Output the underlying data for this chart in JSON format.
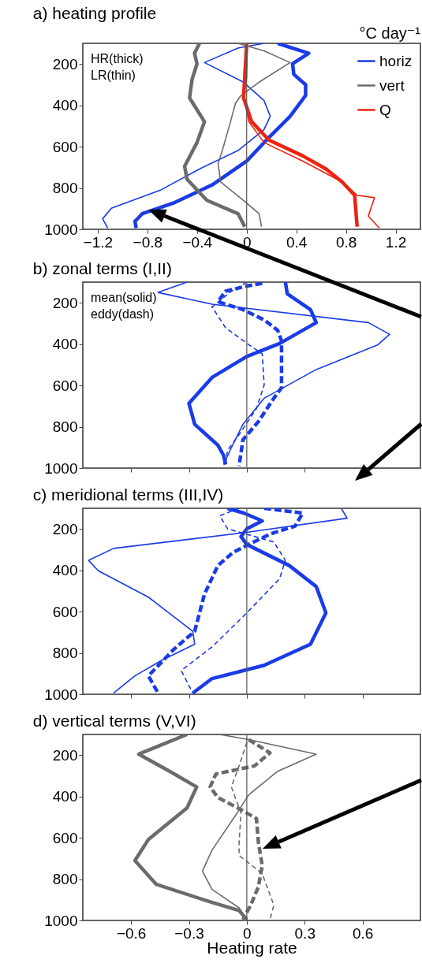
{
  "chart_data": [
    {
      "type": "line",
      "title": "a) heating profile",
      "subtitle": "°C day⁻¹",
      "annotations": [
        "HR(thick)",
        "LR(thin)"
      ],
      "xlim": [
        -1.32,
        1.4
      ],
      "xticks": [
        -1.2,
        -0.8,
        -0.4,
        0,
        0.4,
        0.8,
        1.2
      ],
      "ylim": [
        1000,
        100
      ],
      "yticks": [
        200,
        400,
        600,
        800,
        1000
      ],
      "legend": "top right",
      "ref_lines": [
        {
          "axis": "x",
          "value": 0,
          "color": "#555555"
        }
      ],
      "series": [
        {
          "name": "horiz",
          "color": "#1a3be8",
          "x": [
            0.25,
            0.5,
            0.37,
            0.38,
            0.475,
            0.475,
            0.35,
            0.18,
            0.0,
            -0.275,
            -0.59,
            -0.84,
            -0.9,
            -0.89
          ],
          "values": [
            100,
            148,
            199,
            250,
            300,
            352,
            453,
            555,
            670,
            784,
            873,
            924,
            962,
            994
          ]
        },
        {
          "color": "#1a3be8",
          "x": [
            0.14,
            -0.07,
            -0.34,
            -0.025,
            0.14,
            0.19,
            0.14,
            -0.07,
            -0.38,
            -0.69,
            -1.09,
            -1.16,
            -1.12
          ],
          "values": [
            100,
            123,
            193,
            288,
            377,
            453,
            517,
            619,
            708,
            809,
            898,
            949,
            994
          ]
        },
        {
          "name": "vert",
          "color": "#6b6b6b",
          "x": [
            -0.38,
            -0.42,
            -0.4,
            -0.44,
            -0.46,
            -0.34,
            -0.4,
            -0.5,
            -0.48,
            -0.32,
            -0.07,
            -0.015
          ],
          "values": [
            100,
            148,
            199,
            275,
            364,
            479,
            580,
            695,
            758,
            860,
            924,
            987
          ]
        },
        {
          "color": "#6b6b6b",
          "x": [
            -0.07,
            0.14,
            0.35,
            0.1,
            -0.045,
            -0.09,
            -0.13,
            -0.19,
            -0.23,
            -0.21,
            -0.025,
            0.1,
            0.12
          ],
          "values": [
            100,
            136,
            193,
            288,
            352,
            390,
            479,
            606,
            682,
            771,
            860,
            924,
            987
          ]
        },
        {
          "name": "Q",
          "color": "#ee2211",
          "x": [
            0,
            -0.015,
            -0.025,
            0.04,
            0.18,
            0.45,
            0.64,
            0.77,
            0.87,
            0.88,
            0.89
          ],
          "values": [
            100,
            263,
            364,
            479,
            568,
            644,
            708,
            771,
            835,
            911,
            987
          ]
        },
        {
          "color": "#ee2211",
          "x": [
            0.006,
            0,
            -0.025,
            0.017,
            0.14,
            0.45,
            0.77,
            0.89,
            1.03,
            0.98,
            1.07
          ],
          "values": [
            100,
            263,
            339,
            479,
            580,
            669,
            771,
            835,
            847,
            936,
            994
          ]
        }
      ]
    },
    {
      "type": "line",
      "title": "b) zonal terms (I,II)",
      "annotations": [
        "mean(solid)",
        "eddy(dash)"
      ],
      "xlim": [
        -0.85,
        0.9
      ],
      "xticks": [
        -0.6,
        -0.3,
        0,
        0.3,
        0.6
      ],
      "ylim": [
        1000,
        100
      ],
      "yticks": [
        200,
        400,
        600,
        800,
        1000
      ],
      "tick_labels": "y",
      "ref_lines": [
        {
          "axis": "x",
          "value": 0,
          "color": "#555555"
        }
      ],
      "series": [
        {
          "color": "#1a3be8",
          "line_style": "solid",
          "x": [
            0.2,
            0.21,
            0.33,
            0.36,
            0.17,
            0,
            -0.18,
            -0.3,
            -0.27,
            -0.15,
            -0.12,
            -0.11
          ],
          "values": [
            100,
            157,
            233,
            296,
            397,
            460,
            561,
            687,
            788,
            889,
            939,
            983
          ]
        },
        {
          "color": "#1a3be8",
          "line_style": "solid",
          "x": [
            -0.31,
            -0.46,
            -0.18,
            0.63,
            0.74,
            0.68,
            0.36,
            0.09,
            -0.02,
            -0.08,
            -0.12
          ],
          "values": [
            100,
            150,
            207,
            296,
            352,
            403,
            523,
            662,
            788,
            901,
            983
          ]
        },
        {
          "color": "#1a3be8",
          "line_style": "dashed",
          "x": [
            0.08,
            0,
            -0.11,
            -0.15,
            -0.02,
            0.09,
            0.16,
            0.18,
            0.18,
            0.14,
            0.06,
            -0.02,
            -0.04
          ],
          "values": [
            106,
            119,
            144,
            195,
            233,
            283,
            333,
            384,
            611,
            662,
            775,
            863,
            990
          ]
        },
        {
          "color": "#1a3be8",
          "line_style": "dashed",
          "x": [
            0,
            -0.08,
            -0.18,
            -0.11,
            0.02,
            0.08,
            0.09,
            0.05,
            -0.04,
            -0.1,
            -0.11
          ],
          "values": [
            100,
            144,
            220,
            321,
            409,
            447,
            598,
            712,
            838,
            914,
            983
          ]
        }
      ]
    },
    {
      "type": "line",
      "title": "c) meridional terms (III,IV)",
      "xlim": [
        -0.85,
        0.9
      ],
      "xticks": [
        -0.6,
        -0.3,
        0,
        0.3,
        0.6
      ],
      "ylim": [
        1000,
        100
      ],
      "yticks": [
        200,
        400,
        600,
        800,
        1000
      ],
      "tick_labels": "y",
      "ref_lines": [
        {
          "axis": "x",
          "value": 0,
          "color": "#555555"
        }
      ],
      "series": [
        {
          "color": "#1a3be8",
          "line_style": "solid",
          "x": [
            -0.1,
            -0.016,
            0.08,
            0,
            -0.03,
            0,
            0.22,
            0.36,
            0.41,
            0.33,
            0.09,
            -0.18,
            -0.28
          ],
          "values": [
            100,
            123,
            161,
            199,
            237,
            275,
            377,
            479,
            606,
            758,
            860,
            924,
            994
          ]
        },
        {
          "color": "#1a3be8",
          "line_style": "solid",
          "x": [
            0.49,
            0.52,
            -0.016,
            -0.69,
            -0.82,
            -0.77,
            -0.51,
            -0.28,
            -0.27,
            -0.44,
            -0.58,
            -0.69
          ],
          "values": [
            100,
            148,
            218,
            294,
            352,
            402,
            530,
            695,
            758,
            835,
            911,
            994
          ]
        },
        {
          "color": "#1a3be8",
          "line_style": "dashed",
          "x": [
            0.09,
            0.29,
            0.25,
            0.12,
            0.01,
            -0.07,
            -0.15,
            -0.22,
            -0.27,
            -0.38,
            -0.51,
            -0.46
          ],
          "values": [
            100,
            123,
            186,
            225,
            275,
            313,
            377,
            517,
            695,
            784,
            911,
            994
          ]
        },
        {
          "color": "#1a3be8",
          "line_style": "dashed",
          "x": [
            -0.04,
            -0.14,
            -0.1,
            0.14,
            0.2,
            0.17,
            0,
            -0.18,
            -0.34,
            -0.28
          ],
          "values": [
            100,
            136,
            199,
            263,
            352,
            441,
            606,
            771,
            885,
            994
          ]
        }
      ]
    },
    {
      "type": "line",
      "title": "d) vertical terms (V,VI)",
      "xlabel": "Heating rate",
      "xlim": [
        -0.85,
        0.9
      ],
      "xticks": [
        -0.6,
        -0.3,
        0,
        0.3,
        0.6
      ],
      "ylim": [
        1000,
        100
      ],
      "yticks": [
        200,
        400,
        600,
        800,
        1000
      ],
      "ref_lines": [
        {
          "axis": "x",
          "value": 0,
          "color": "#555555"
        }
      ],
      "series": [
        {
          "color": "#6b6b6b",
          "line_style": "solid",
          "x": [
            -0.31,
            -0.56,
            -0.4,
            -0.26,
            -0.31,
            -0.51,
            -0.58,
            -0.47,
            -0.18,
            -0.04,
            0
          ],
          "values": [
            100,
            195,
            278,
            354,
            456,
            608,
            710,
            825,
            913,
            952,
            996
          ]
        },
        {
          "color": "#6b6b6b",
          "line_style": "solid",
          "x": [
            -0.14,
            0.01,
            0.36,
            0.16,
            0.01,
            -0.06,
            -0.18,
            -0.23,
            -0.18,
            -0.04,
            0
          ],
          "values": [
            100,
            125,
            195,
            278,
            392,
            494,
            659,
            761,
            850,
            939,
            996
          ]
        },
        {
          "color": "#6b6b6b",
          "line_style": "dashed",
          "x": [
            0.01,
            0.12,
            0.04,
            -0.16,
            -0.19,
            -0.15,
            -0.02,
            0.05,
            0.06,
            0.08,
            0.06,
            0.02,
            -0.02
          ],
          "values": [
            125,
            189,
            252,
            291,
            354,
            405,
            469,
            507,
            621,
            735,
            837,
            926,
            996
          ]
        },
        {
          "color": "#6b6b6b",
          "line_style": "dashed",
          "x": [
            0,
            -0.04,
            -0.08,
            -0.03,
            -0.04,
            -0.04,
            0.08,
            0.14,
            0.12
          ],
          "values": [
            138,
            252,
            354,
            481,
            621,
            685,
            774,
            926,
            996
          ]
        }
      ]
    }
  ]
}
